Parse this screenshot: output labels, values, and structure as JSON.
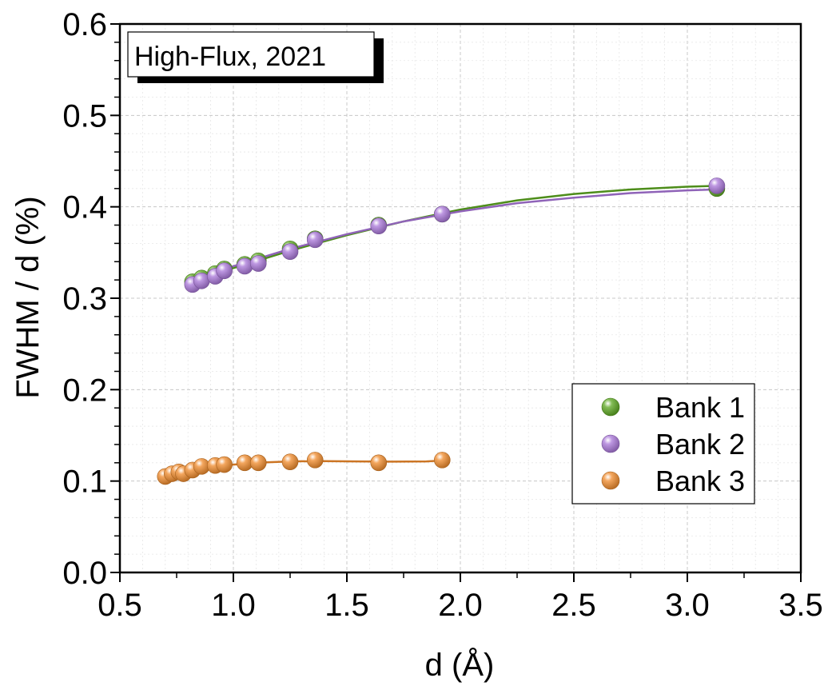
{
  "chart_data": {
    "type": "scatter",
    "annotation": "High-Flux, 2021",
    "xlabel": "d (Å)",
    "ylabel": "FWHM / d (%)",
    "xlim": [
      0.5,
      3.5
    ],
    "ylim": [
      0.0,
      0.6
    ],
    "x_ticks": [
      "0.5",
      "1.0",
      "1.5",
      "2.0",
      "2.5",
      "3.0",
      "3.5"
    ],
    "y_ticks": [
      "0.0",
      "0.1",
      "0.2",
      "0.3",
      "0.4",
      "0.5",
      "0.6"
    ],
    "grid": true,
    "legend_position": "bottom-right",
    "series": [
      {
        "name": "Bank 1",
        "color": "#5aa61e",
        "marker": "sphere",
        "x": [
          0.82,
          0.86,
          0.92,
          0.96,
          1.05,
          1.11,
          1.25,
          1.36,
          1.64,
          1.92,
          3.13
        ],
        "y": [
          0.318,
          0.322,
          0.327,
          0.332,
          0.337,
          0.341,
          0.354,
          0.365,
          0.38,
          0.392,
          0.42
        ],
        "fit": {
          "x": [
            0.82,
            1.0,
            1.25,
            1.5,
            1.75,
            2.0,
            2.25,
            2.5,
            2.75,
            3.0,
            3.13
          ],
          "y": [
            0.315,
            0.333,
            0.352,
            0.369,
            0.384,
            0.397,
            0.407,
            0.414,
            0.419,
            0.422,
            0.423
          ]
        }
      },
      {
        "name": "Bank 2",
        "color": "#a875d8",
        "marker": "sphere",
        "x": [
          0.82,
          0.86,
          0.92,
          0.96,
          1.05,
          1.11,
          1.25,
          1.36,
          1.64,
          1.92,
          3.13
        ],
        "y": [
          0.315,
          0.319,
          0.324,
          0.33,
          0.335,
          0.338,
          0.351,
          0.364,
          0.379,
          0.392,
          0.423
        ],
        "fit": {
          "x": [
            0.82,
            1.0,
            1.25,
            1.5,
            1.75,
            2.0,
            2.25,
            2.5,
            2.75,
            3.0,
            3.13
          ],
          "y": [
            0.318,
            0.335,
            0.354,
            0.37,
            0.384,
            0.395,
            0.404,
            0.41,
            0.415,
            0.418,
            0.419
          ]
        }
      },
      {
        "name": "Bank 3",
        "color": "#f08a2a",
        "marker": "sphere",
        "x": [
          0.7,
          0.73,
          0.76,
          0.78,
          0.82,
          0.86,
          0.92,
          0.96,
          1.05,
          1.11,
          1.25,
          1.36,
          1.64,
          1.92
        ],
        "y": [
          0.105,
          0.108,
          0.11,
          0.108,
          0.112,
          0.116,
          0.117,
          0.118,
          0.12,
          0.12,
          0.121,
          0.123,
          0.12,
          0.123
        ],
        "fit": {
          "x": [
            0.7,
            0.8,
            0.9,
            1.0,
            1.1,
            1.25,
            1.4,
            1.55,
            1.7,
            1.85,
            1.92
          ],
          "y": [
            0.106,
            0.111,
            0.115,
            0.118,
            0.12,
            0.1215,
            0.1218,
            0.1215,
            0.1212,
            0.1215,
            0.1225
          ]
        }
      }
    ]
  }
}
